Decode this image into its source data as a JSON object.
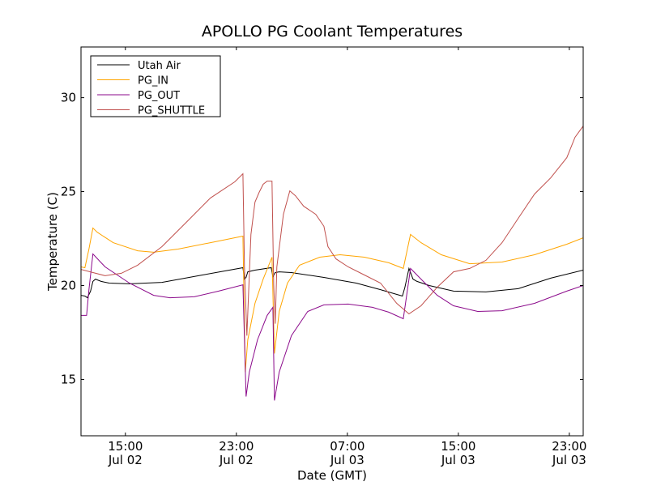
{
  "chart_data": {
    "type": "line",
    "title": "APOLLO PG Coolant Temperatures",
    "xlabel": "Date (GMT)",
    "ylabel": "Temperature (C)",
    "x_units": "hours since Jul 02 00:00 GMT",
    "xlim": [
      11.8,
      48.0
    ],
    "ylim": [
      12.0,
      32.7
    ],
    "grid": false,
    "legend_position": "top-left",
    "xticks": [
      {
        "value": 15,
        "time": "15:00",
        "date": "Jul 02"
      },
      {
        "value": 23,
        "time": "23:00",
        "date": "Jul 02"
      },
      {
        "value": 31,
        "time": "07:00",
        "date": "Jul 03"
      },
      {
        "value": 39,
        "time": "15:00",
        "date": "Jul 03"
      },
      {
        "value": 47,
        "time": "23:00",
        "date": "Jul 03"
      }
    ],
    "yticks": [
      15,
      20,
      25,
      30
    ],
    "series": [
      {
        "name": "Utah Air",
        "color": "#000000",
        "points": [
          [
            11.79,
            19.48
          ],
          [
            12.08,
            19.44
          ],
          [
            12.26,
            19.35
          ],
          [
            12.49,
            19.7
          ],
          [
            12.66,
            20.22
          ],
          [
            12.84,
            20.34
          ],
          [
            13.25,
            20.22
          ],
          [
            13.83,
            20.13
          ],
          [
            15.29,
            20.09
          ],
          [
            17.63,
            20.17
          ],
          [
            20.55,
            20.56
          ],
          [
            23.47,
            20.95
          ],
          [
            23.58,
            20.34
          ],
          [
            23.7,
            20.43
          ],
          [
            23.82,
            20.73
          ],
          [
            24.34,
            20.82
          ],
          [
            25.51,
            20.95
          ],
          [
            25.63,
            20.47
          ],
          [
            25.8,
            20.69
          ],
          [
            26.09,
            20.73
          ],
          [
            26.97,
            20.69
          ],
          [
            29.31,
            20.43
          ],
          [
            31.64,
            20.13
          ],
          [
            33.39,
            19.78
          ],
          [
            34.97,
            19.44
          ],
          [
            35.15,
            19.91
          ],
          [
            35.44,
            20.91
          ],
          [
            35.73,
            20.34
          ],
          [
            36.02,
            20.22
          ],
          [
            36.9,
            20.0
          ],
          [
            38.65,
            19.7
          ],
          [
            40.99,
            19.66
          ],
          [
            43.32,
            19.83
          ],
          [
            45.66,
            20.39
          ],
          [
            48.0,
            20.82
          ]
        ]
      },
      {
        "name": "PG_IN",
        "color": "#ffa500",
        "points": [
          [
            11.79,
            20.99
          ],
          [
            12.08,
            20.95
          ],
          [
            12.37,
            21.94
          ],
          [
            12.66,
            23.06
          ],
          [
            12.96,
            22.84
          ],
          [
            14.12,
            22.28
          ],
          [
            15.88,
            21.85
          ],
          [
            17.04,
            21.77
          ],
          [
            18.8,
            21.94
          ],
          [
            21.13,
            22.28
          ],
          [
            23.47,
            22.63
          ],
          [
            23.64,
            15.39
          ],
          [
            23.82,
            17.11
          ],
          [
            24.34,
            19.05
          ],
          [
            24.93,
            20.34
          ],
          [
            25.57,
            21.51
          ],
          [
            25.74,
            16.38
          ],
          [
            26.09,
            18.62
          ],
          [
            26.68,
            20.13
          ],
          [
            27.55,
            21.08
          ],
          [
            29.01,
            21.51
          ],
          [
            30.47,
            21.64
          ],
          [
            32.23,
            21.51
          ],
          [
            33.98,
            21.21
          ],
          [
            35.03,
            20.91
          ],
          [
            35.55,
            22.72
          ],
          [
            36.31,
            22.28
          ],
          [
            37.77,
            21.64
          ],
          [
            39.82,
            21.16
          ],
          [
            42.15,
            21.25
          ],
          [
            44.49,
            21.64
          ],
          [
            46.82,
            22.2
          ],
          [
            48.0,
            22.54
          ]
        ]
      },
      {
        "name": "PG_OUT",
        "color": "#8b0a8b",
        "points": [
          [
            11.79,
            18.41
          ],
          [
            12.2,
            18.41
          ],
          [
            12.37,
            19.78
          ],
          [
            12.66,
            21.68
          ],
          [
            13.54,
            20.99
          ],
          [
            15.29,
            20.13
          ],
          [
            17.04,
            19.48
          ],
          [
            18.21,
            19.35
          ],
          [
            19.96,
            19.4
          ],
          [
            21.72,
            19.7
          ],
          [
            23.47,
            20.04
          ],
          [
            23.7,
            14.09
          ],
          [
            23.93,
            15.39
          ],
          [
            24.52,
            17.11
          ],
          [
            25.22,
            18.41
          ],
          [
            25.63,
            18.84
          ],
          [
            25.74,
            13.88
          ],
          [
            26.09,
            15.39
          ],
          [
            26.97,
            17.33
          ],
          [
            28.14,
            18.62
          ],
          [
            29.31,
            18.97
          ],
          [
            31.06,
            19.01
          ],
          [
            32.81,
            18.84
          ],
          [
            33.98,
            18.58
          ],
          [
            35.03,
            18.23
          ],
          [
            35.55,
            20.91
          ],
          [
            36.31,
            20.34
          ],
          [
            37.48,
            19.48
          ],
          [
            38.65,
            18.92
          ],
          [
            40.4,
            18.62
          ],
          [
            42.15,
            18.66
          ],
          [
            44.49,
            19.05
          ],
          [
            46.82,
            19.7
          ],
          [
            48.0,
            20.0
          ]
        ]
      },
      {
        "name": "PG_SHUTTLE",
        "color": "#c0504d",
        "points": [
          [
            11.79,
            20.86
          ],
          [
            13.54,
            20.52
          ],
          [
            14.71,
            20.65
          ],
          [
            15.88,
            21.08
          ],
          [
            17.63,
            22.07
          ],
          [
            19.38,
            23.36
          ],
          [
            21.13,
            24.66
          ],
          [
            22.88,
            25.52
          ],
          [
            23.47,
            25.95
          ],
          [
            23.58,
            20.99
          ],
          [
            23.76,
            17.33
          ],
          [
            24.05,
            22.72
          ],
          [
            24.34,
            24.44
          ],
          [
            24.64,
            24.96
          ],
          [
            24.93,
            25.39
          ],
          [
            25.22,
            25.56
          ],
          [
            25.57,
            25.56
          ],
          [
            25.69,
            20.04
          ],
          [
            25.8,
            17.97
          ],
          [
            25.92,
            20.99
          ],
          [
            26.39,
            23.79
          ],
          [
            26.85,
            25.04
          ],
          [
            27.26,
            24.78
          ],
          [
            27.85,
            24.22
          ],
          [
            28.72,
            23.79
          ],
          [
            29.31,
            23.15
          ],
          [
            29.6,
            22.07
          ],
          [
            30.18,
            21.42
          ],
          [
            31.06,
            20.99
          ],
          [
            32.23,
            20.56
          ],
          [
            33.39,
            20.13
          ],
          [
            34.56,
            19.05
          ],
          [
            35.44,
            18.49
          ],
          [
            36.31,
            18.92
          ],
          [
            37.48,
            19.91
          ],
          [
            38.65,
            20.73
          ],
          [
            39.82,
            20.91
          ],
          [
            40.99,
            21.34
          ],
          [
            42.15,
            22.28
          ],
          [
            43.32,
            23.58
          ],
          [
            44.49,
            24.87
          ],
          [
            45.66,
            25.73
          ],
          [
            46.82,
            26.81
          ],
          [
            47.41,
            27.89
          ],
          [
            48.0,
            28.49
          ]
        ]
      }
    ]
  }
}
